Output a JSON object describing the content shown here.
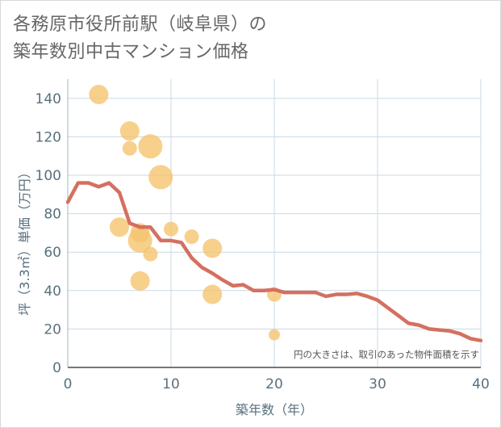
{
  "title": {
    "line1": "各務原市役所前駅（岐阜県）の",
    "line2": "築年数別中古マンション価格"
  },
  "colors": {
    "bubble": "#f5c36b",
    "line": "#d47060",
    "grid": "#c9d9e4",
    "tick_text": "#58707e"
  },
  "chart_data": {
    "type": "scatter",
    "xlabel": "築年数（年）",
    "ylabel": "坪（3.3㎡）単価（万円）",
    "xlim": [
      0,
      40
    ],
    "ylim": [
      0,
      150
    ],
    "xticks": [
      0,
      10,
      20,
      30,
      40
    ],
    "yticks": [
      0,
      20,
      40,
      60,
      80,
      100,
      120,
      140
    ],
    "grid": true,
    "note": "円の大きさは、取引のあった物件面積を示す",
    "bubbles": [
      {
        "x": 3,
        "y": 142,
        "size": 2
      },
      {
        "x": 6,
        "y": 123,
        "size": 2
      },
      {
        "x": 6,
        "y": 114,
        "size": 1
      },
      {
        "x": 8,
        "y": 115,
        "size": 3
      },
      {
        "x": 9,
        "y": 99,
        "size": 3
      },
      {
        "x": 5,
        "y": 73,
        "size": 2
      },
      {
        "x": 7,
        "y": 70,
        "size": 2
      },
      {
        "x": 7,
        "y": 66,
        "size": 3
      },
      {
        "x": 8,
        "y": 59,
        "size": 1
      },
      {
        "x": 7,
        "y": 45,
        "size": 2
      },
      {
        "x": 10,
        "y": 72,
        "size": 1
      },
      {
        "x": 12,
        "y": 68,
        "size": 1
      },
      {
        "x": 14,
        "y": 62,
        "size": 2
      },
      {
        "x": 14,
        "y": 38,
        "size": 2
      },
      {
        "x": 20,
        "y": 38,
        "size": 1
      },
      {
        "x": 20,
        "y": 17,
        "size": 0
      }
    ],
    "line": {
      "x": [
        0,
        1,
        2,
        3,
        4,
        5,
        6,
        7,
        8,
        9,
        10,
        11,
        12,
        13,
        14,
        15,
        16,
        17,
        18,
        19,
        20,
        21,
        22,
        23,
        24,
        25,
        26,
        27,
        28,
        29,
        30,
        31,
        32,
        33,
        34,
        35,
        36,
        37,
        38,
        39,
        40
      ],
      "y": [
        86,
        96,
        96,
        94,
        96,
        91,
        75,
        73,
        73,
        66,
        66,
        65,
        57,
        52,
        49,
        45.5,
        42.5,
        43,
        40,
        40,
        40.5,
        39,
        39,
        39,
        39,
        37,
        38,
        38,
        38.5,
        37,
        35,
        31,
        27,
        23,
        22,
        20,
        19.5,
        19,
        17.5,
        15,
        14
      ]
    }
  }
}
